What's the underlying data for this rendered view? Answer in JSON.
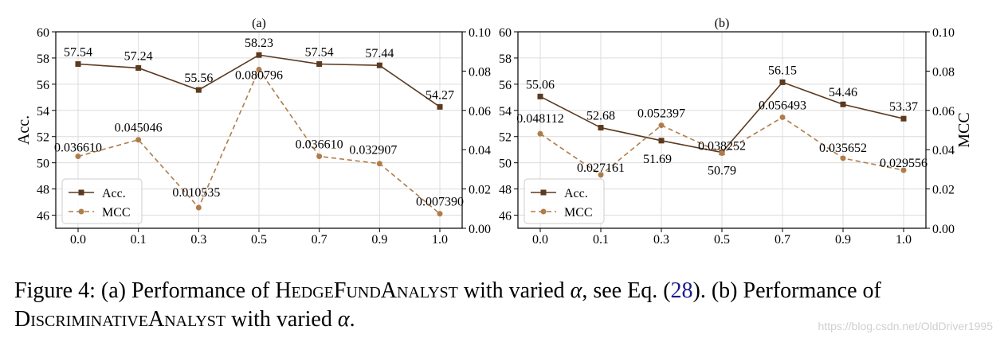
{
  "chart_data": [
    {
      "type": "line",
      "title": "(a)",
      "categories": [
        "0.0",
        "0.1",
        "0.3",
        "0.5",
        "0.7",
        "0.9",
        "1.0"
      ],
      "ylabel_left": "Acc.",
      "ylabel_right": "",
      "ylim_left": [
        45,
        60
      ],
      "yticks_left": [
        46,
        48,
        50,
        52,
        54,
        56,
        58,
        60
      ],
      "ylim_right": [
        0.0,
        0.1
      ],
      "yticks_right": [
        "0.00",
        "0.02",
        "0.04",
        "0.06",
        "0.08",
        "0.10"
      ],
      "grid": true,
      "legend": "lower-left",
      "series": [
        {
          "name": "Acc.",
          "axis": "left",
          "style": "solid",
          "marker": "square",
          "values": [
            57.54,
            57.24,
            55.56,
            58.23,
            57.54,
            57.44,
            54.27
          ],
          "labels": [
            "57.54",
            "57.24",
            "55.56",
            "58.23",
            "57.54",
            "57.44",
            "54.27"
          ]
        },
        {
          "name": "MCC",
          "axis": "right",
          "style": "dashed",
          "marker": "circle",
          "values": [
            0.03661,
            0.045046,
            0.010535,
            0.080796,
            0.03661,
            0.032907,
            0.00739
          ],
          "labels": [
            "0.036610",
            "0.045046",
            "0.010535",
            "0.080796",
            "0.036610",
            "0.032907",
            "0.007390"
          ]
        }
      ]
    },
    {
      "type": "line",
      "title": "(b)",
      "categories": [
        "0.0",
        "0.1",
        "0.3",
        "0.5",
        "0.7",
        "0.9",
        "1.0"
      ],
      "ylabel_left": "",
      "ylabel_right": "MCC",
      "ylim_left": [
        45,
        60
      ],
      "yticks_left": [
        46,
        48,
        50,
        52,
        54,
        56,
        58,
        60
      ],
      "ylim_right": [
        0.0,
        0.1
      ],
      "yticks_right": [
        "0.00",
        "0.02",
        "0.04",
        "0.06",
        "0.08",
        "0.10"
      ],
      "grid": true,
      "legend": "lower-left",
      "series": [
        {
          "name": "Acc.",
          "axis": "left",
          "style": "solid",
          "marker": "square",
          "values": [
            55.06,
            52.68,
            51.69,
            50.79,
            56.15,
            54.46,
            53.37
          ],
          "labels": [
            "55.06",
            "52.68",
            "51.69",
            "50.79",
            "56.15",
            "54.46",
            "53.37"
          ]
        },
        {
          "name": "MCC",
          "axis": "right",
          "style": "dashed",
          "marker": "circle",
          "values": [
            0.048112,
            0.027161,
            0.052397,
            0.038252,
            0.056493,
            0.035652,
            0.029556
          ],
          "labels": [
            "0.048112",
            "0.027161",
            "0.052397",
            "0.038252",
            "0.056493",
            "0.035652",
            "0.029556"
          ]
        }
      ]
    }
  ],
  "colors": {
    "acc": "#5b3a20",
    "mcc": "#b07c4a",
    "grid": "#dcdcdc"
  },
  "caption": {
    "p1": "Figure 4:  (a) Performance of ",
    "name1": "HedgeFundAnalyst",
    "p2": " with varied ",
    "alpha1": "α",
    "p3": ", see Eq. (",
    "ref": "28",
    "p4": "). (b) Performance of ",
    "name2": "DiscriminativeAnalyst",
    "p5": " with varied ",
    "alpha2": "α",
    "p6": "."
  },
  "watermark": "https://blog.csdn.net/OldDriver1995"
}
